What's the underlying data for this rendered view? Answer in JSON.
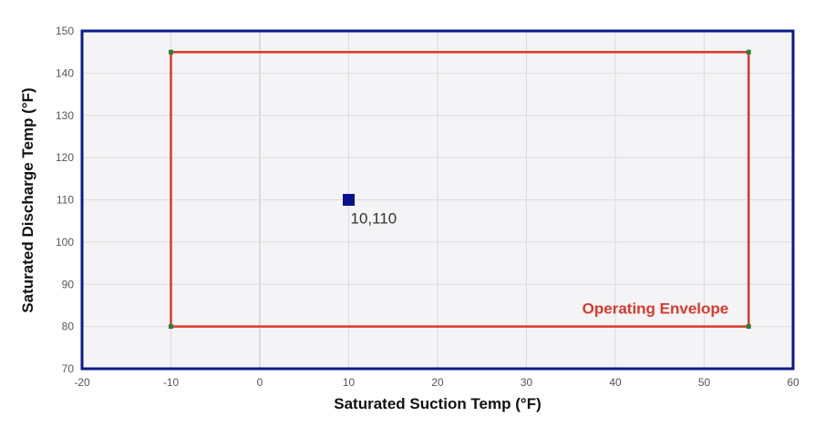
{
  "chart_data": {
    "type": "scatter",
    "xlabel": "Saturated Suction Temp (°F)",
    "ylabel": "Saturated Discharge Temp (°F)",
    "xlim": [
      -20,
      60
    ],
    "ylim": [
      70,
      150
    ],
    "xticks": [
      -20,
      -10,
      0,
      10,
      20,
      30,
      40,
      50,
      60
    ],
    "yticks": [
      70,
      80,
      90,
      100,
      110,
      120,
      130,
      140,
      150
    ],
    "grid": true,
    "envelope": {
      "label": "Operating Envelope",
      "points": [
        [
          -10,
          80
        ],
        [
          -10,
          145
        ],
        [
          55,
          145
        ],
        [
          55,
          80
        ]
      ],
      "color": "#d9392b",
      "corner_color": "#2e7d32"
    },
    "point": {
      "x": 10,
      "y": 110,
      "label": "10,110",
      "color": "#0a0f8c"
    },
    "colors": {
      "plot_bg": "#f4f4f6",
      "frame": "#0a1a8c",
      "grid": "#dcdcdc",
      "zero_line": "#c0c0c0"
    }
  }
}
